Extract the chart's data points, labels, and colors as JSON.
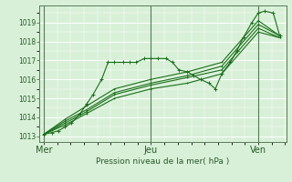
{
  "bg_color": "#d8f0d8",
  "grid_color": "#ffffff",
  "line_color": "#1a6e1a",
  "marker_color": "#1a6e1a",
  "axis_label": "Pression niveau de la mer( hPa )",
  "x_ticks_labels": [
    "Mer",
    "Jeu",
    "Ven"
  ],
  "x_ticks_pos": [
    0.0,
    0.5,
    1.0
  ],
  "yticks": [
    1013,
    1014,
    1015,
    1016,
    1017,
    1018,
    1019
  ],
  "ylim": [
    1012.7,
    1019.9
  ],
  "xlim": [
    -0.02,
    1.13
  ],
  "series": [
    {
      "x": [
        0.0,
        0.04,
        0.07,
        0.1,
        0.13,
        0.17,
        0.2,
        0.23,
        0.27,
        0.3,
        0.33,
        0.37,
        0.4,
        0.43,
        0.47,
        0.5,
        0.53,
        0.57,
        0.6,
        0.63,
        0.67,
        0.7,
        0.73,
        0.77,
        0.8,
        0.83,
        0.87,
        0.9,
        0.93,
        0.97,
        1.0,
        1.03,
        1.07,
        1.1
      ],
      "y": [
        1013.1,
        1013.2,
        1013.3,
        1013.5,
        1013.7,
        1014.2,
        1014.7,
        1015.2,
        1016.0,
        1016.9,
        1016.9,
        1016.9,
        1016.9,
        1016.9,
        1017.1,
        1017.1,
        1017.1,
        1017.1,
        1016.9,
        1016.5,
        1016.4,
        1016.2,
        1016.0,
        1015.8,
        1015.5,
        1016.3,
        1016.9,
        1017.5,
        1018.2,
        1019.0,
        1019.5,
        1019.6,
        1019.5,
        1018.3
      ]
    },
    {
      "x": [
        0.0,
        0.1,
        0.2,
        0.33,
        0.5,
        0.67,
        0.83,
        1.0,
        1.1
      ],
      "y": [
        1013.1,
        1013.6,
        1014.2,
        1015.0,
        1015.5,
        1015.8,
        1016.3,
        1018.5,
        1018.2
      ]
    },
    {
      "x": [
        0.0,
        0.1,
        0.2,
        0.33,
        0.5,
        0.67,
        0.83,
        1.0,
        1.1
      ],
      "y": [
        1013.1,
        1013.7,
        1014.3,
        1015.2,
        1015.7,
        1016.1,
        1016.5,
        1018.7,
        1018.2
      ]
    },
    {
      "x": [
        0.0,
        0.1,
        0.2,
        0.33,
        0.5,
        0.67,
        0.83,
        1.0,
        1.1
      ],
      "y": [
        1013.1,
        1013.8,
        1014.4,
        1015.3,
        1015.8,
        1016.2,
        1016.7,
        1018.9,
        1018.3
      ]
    },
    {
      "x": [
        0.0,
        0.1,
        0.2,
        0.33,
        0.5,
        0.67,
        0.83,
        1.0,
        1.1
      ],
      "y": [
        1013.1,
        1013.9,
        1014.6,
        1015.5,
        1016.0,
        1016.4,
        1016.9,
        1019.1,
        1018.3
      ]
    }
  ],
  "vline_color": "#5a7a5a",
  "tick_color": "#2a5a2a",
  "label_fontsize": 7.0,
  "ylabel_fontsize": 6.5
}
